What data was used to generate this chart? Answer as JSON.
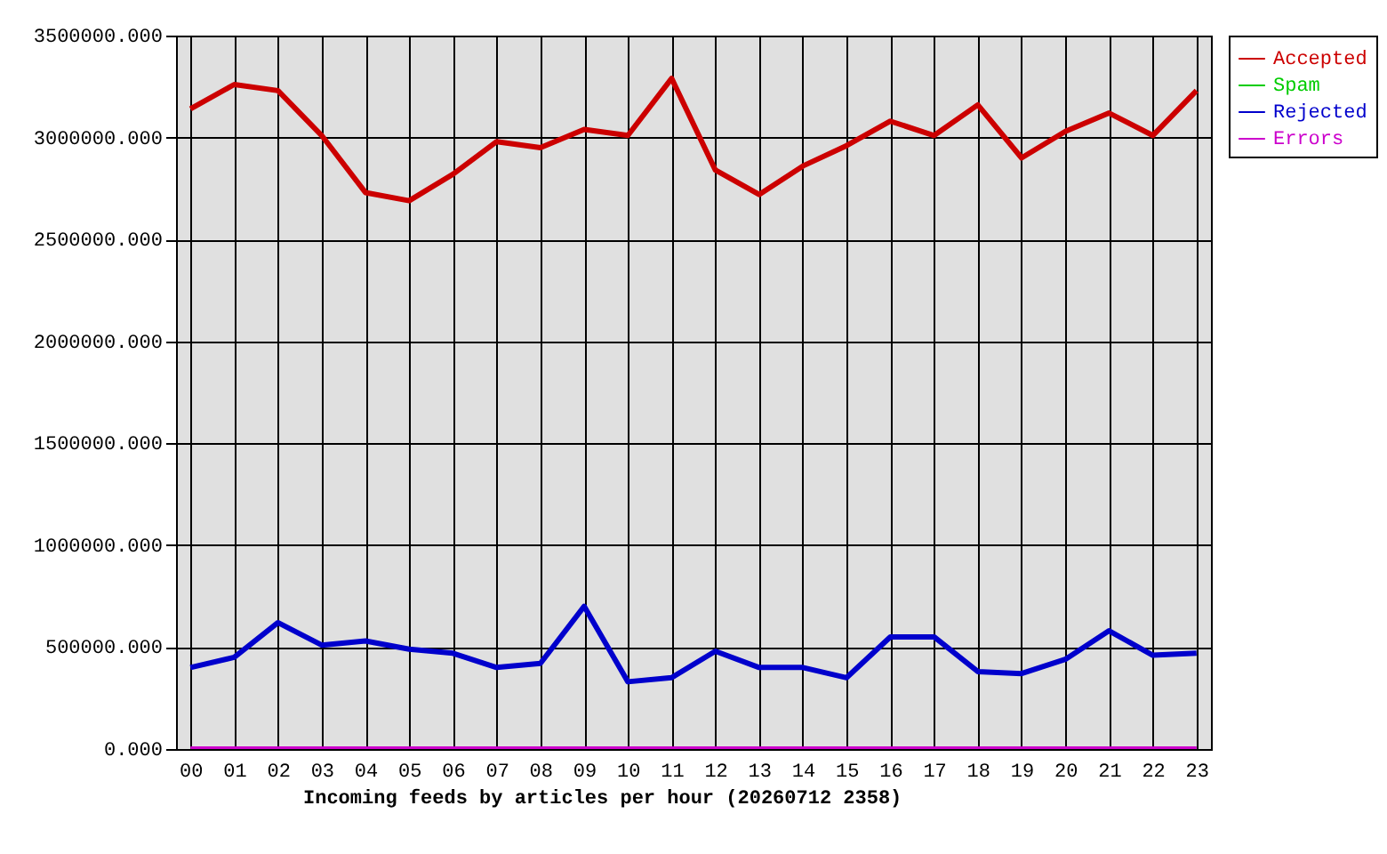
{
  "chart_data": {
    "type": "line",
    "xlabel": "Incoming feeds by articles per hour (20260712 2358)",
    "categories": [
      "00",
      "01",
      "02",
      "03",
      "04",
      "05",
      "06",
      "07",
      "08",
      "09",
      "10",
      "11",
      "12",
      "13",
      "14",
      "15",
      "16",
      "17",
      "18",
      "19",
      "20",
      "21",
      "22",
      "23"
    ],
    "series": [
      {
        "name": "Accepted",
        "color": "#cc0000",
        "values": [
          3140000,
          3260000,
          3230000,
          3010000,
          2730000,
          2690000,
          2820000,
          2980000,
          2950000,
          3040000,
          3010000,
          3290000,
          2840000,
          2720000,
          2860000,
          2960000,
          3080000,
          3010000,
          3160000,
          2900000,
          3030000,
          3120000,
          3010000,
          3230000
        ]
      },
      {
        "name": "Spam",
        "color": "#00cc00",
        "values": [
          null,
          null,
          null,
          null,
          null,
          null,
          null,
          null,
          null,
          null,
          null,
          null,
          null,
          null,
          null,
          null,
          null,
          null,
          null,
          null,
          null,
          null,
          null,
          null
        ]
      },
      {
        "name": "Rejected",
        "color": "#0000cc",
        "values": [
          400000,
          450000,
          620000,
          510000,
          530000,
          490000,
          470000,
          400000,
          420000,
          700000,
          330000,
          350000,
          480000,
          400000,
          400000,
          350000,
          550000,
          550000,
          380000,
          370000,
          440000,
          580000,
          460000,
          470000
        ]
      },
      {
        "name": "Errors",
        "color": "#cc00cc",
        "values": [
          0,
          0,
          0,
          0,
          0,
          0,
          0,
          0,
          0,
          0,
          0,
          0,
          0,
          0,
          0,
          0,
          0,
          0,
          0,
          0,
          0,
          0,
          0,
          0
        ]
      }
    ],
    "ylim": [
      0,
      3500000
    ],
    "yticks": [
      {
        "value": 0,
        "label": "0.000"
      },
      {
        "value": 500000,
        "label": "500000.000"
      },
      {
        "value": 1000000,
        "label": "1000000.000"
      },
      {
        "value": 1500000,
        "label": "1500000.000"
      },
      {
        "value": 2000000,
        "label": "2000000.000"
      },
      {
        "value": 2500000,
        "label": "2500000.000"
      },
      {
        "value": 3000000,
        "label": "3000000.000"
      },
      {
        "value": 3500000,
        "label": "3500000.000"
      }
    ],
    "grid": true,
    "legend": "top right"
  }
}
